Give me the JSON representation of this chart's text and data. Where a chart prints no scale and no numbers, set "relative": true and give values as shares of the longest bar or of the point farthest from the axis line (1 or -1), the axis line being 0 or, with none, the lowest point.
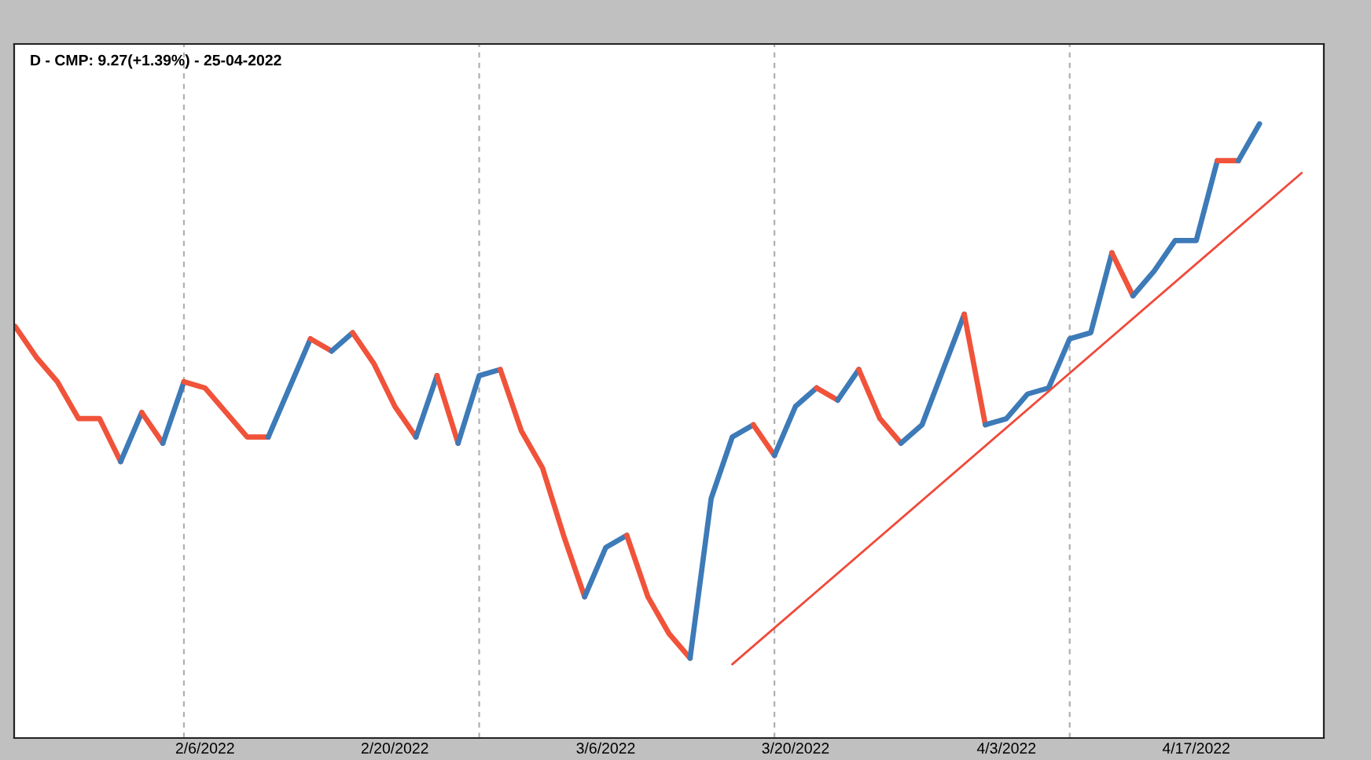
{
  "chart_data": {
    "type": "line",
    "relative": true,
    "grid": "x",
    "title": "D - CMP: 9.27(+1.39%) - 25-04-2022",
    "categories": [
      null,
      null,
      null,
      null,
      null,
      null,
      null,
      null,
      null,
      "2/6/2022",
      null,
      null,
      null,
      null,
      null,
      null,
      null,
      null,
      "2/20/2022",
      null,
      null,
      null,
      null,
      null,
      null,
      null,
      null,
      null,
      "3/6/2022",
      null,
      null,
      null,
      null,
      null,
      null,
      null,
      null,
      "3/20/2022",
      null,
      null,
      null,
      null,
      null,
      null,
      null,
      null,
      null,
      "4/3/2022",
      null,
      null,
      null,
      null,
      null,
      null,
      null,
      null,
      "4/17/2022",
      null,
      null,
      null,
      null,
      null,
      null
    ],
    "series": [
      {
        "color": "#f0533a",
        "values": [
          0.67,
          0.62,
          0.58,
          0.52,
          0.52,
          0.45,
          null,
          null,
          null,
          null,
          null,
          null,
          null,
          null,
          null,
          null,
          null,
          null,
          null,
          null,
          null,
          null,
          null,
          null,
          null,
          null,
          null,
          null,
          null,
          null,
          null,
          null,
          null,
          null,
          null,
          null,
          null,
          null,
          null,
          null,
          null,
          null,
          null,
          null,
          null,
          null,
          null,
          null,
          null,
          null,
          null,
          null,
          null,
          null,
          null,
          null,
          null,
          null,
          null,
          null,
          null,
          null,
          null
        ]
      },
      {
        "color": "#3d7ab8",
        "values": [
          null,
          null,
          null,
          null,
          null,
          0.45,
          0.53,
          null,
          null,
          null,
          null,
          null,
          null,
          null,
          null,
          null,
          null,
          null,
          null,
          null,
          null,
          null,
          null,
          null,
          null,
          null,
          null,
          null,
          null,
          null,
          null,
          null,
          null,
          null,
          null,
          null,
          null,
          null,
          null,
          null,
          null,
          null,
          null,
          null,
          null,
          null,
          null,
          null,
          null,
          null,
          null,
          null,
          null,
          null,
          null,
          null,
          null,
          null,
          null,
          null,
          null,
          null,
          null
        ]
      },
      {
        "color": "#f0533a",
        "values": [
          null,
          null,
          null,
          null,
          null,
          null,
          0.53,
          0.48,
          null,
          null,
          null,
          null,
          null,
          null,
          null,
          null,
          null,
          null,
          null,
          null,
          null,
          null,
          null,
          null,
          null,
          null,
          null,
          null,
          null,
          null,
          null,
          null,
          null,
          null,
          null,
          null,
          null,
          null,
          null,
          null,
          null,
          null,
          null,
          null,
          null,
          null,
          null,
          null,
          null,
          null,
          null,
          null,
          null,
          null,
          null,
          null,
          null,
          null,
          null,
          null,
          null,
          null,
          null
        ]
      },
      {
        "color": "#3d7ab8",
        "values": [
          null,
          null,
          null,
          null,
          null,
          null,
          null,
          0.48,
          0.58,
          null,
          null,
          null,
          null,
          null,
          null,
          null,
          null,
          null,
          null,
          null,
          null,
          null,
          null,
          null,
          null,
          null,
          null,
          null,
          null,
          null,
          null,
          null,
          null,
          null,
          null,
          null,
          null,
          null,
          null,
          null,
          null,
          null,
          null,
          null,
          null,
          null,
          null,
          null,
          null,
          null,
          null,
          null,
          null,
          null,
          null,
          null,
          null,
          null,
          null,
          null,
          null,
          null,
          null
        ]
      },
      {
        "color": "#f0533a",
        "values": [
          null,
          null,
          null,
          null,
          null,
          null,
          null,
          null,
          0.58,
          0.57,
          0.53,
          0.49,
          0.49,
          null,
          null,
          null,
          null,
          null,
          null,
          null,
          null,
          null,
          null,
          null,
          null,
          null,
          null,
          null,
          null,
          null,
          null,
          null,
          null,
          null,
          null,
          null,
          null,
          null,
          null,
          null,
          null,
          null,
          null,
          null,
          null,
          null,
          null,
          null,
          null,
          null,
          null,
          null,
          null,
          null,
          null,
          null,
          null,
          null,
          null,
          null,
          null,
          null,
          null
        ]
      },
      {
        "color": "#3d7ab8",
        "values": [
          null,
          null,
          null,
          null,
          null,
          null,
          null,
          null,
          null,
          null,
          null,
          null,
          0.49,
          0.57,
          0.65,
          null,
          null,
          null,
          null,
          null,
          null,
          null,
          null,
          null,
          null,
          null,
          null,
          null,
          null,
          null,
          null,
          null,
          null,
          null,
          null,
          null,
          null,
          null,
          null,
          null,
          null,
          null,
          null,
          null,
          null,
          null,
          null,
          null,
          null,
          null,
          null,
          null,
          null,
          null,
          null,
          null,
          null,
          null,
          null,
          null,
          null,
          null,
          null
        ]
      },
      {
        "color": "#f0533a",
        "values": [
          null,
          null,
          null,
          null,
          null,
          null,
          null,
          null,
          null,
          null,
          null,
          null,
          null,
          null,
          0.65,
          0.63,
          null,
          null,
          null,
          null,
          null,
          null,
          null,
          null,
          null,
          null,
          null,
          null,
          null,
          null,
          null,
          null,
          null,
          null,
          null,
          null,
          null,
          null,
          null,
          null,
          null,
          null,
          null,
          null,
          null,
          null,
          null,
          null,
          null,
          null,
          null,
          null,
          null,
          null,
          null,
          null,
          null,
          null,
          null,
          null,
          null,
          null,
          null
        ]
      },
      {
        "color": "#3d7ab8",
        "values": [
          null,
          null,
          null,
          null,
          null,
          null,
          null,
          null,
          null,
          null,
          null,
          null,
          null,
          null,
          null,
          0.63,
          0.66,
          null,
          null,
          null,
          null,
          null,
          null,
          null,
          null,
          null,
          null,
          null,
          null,
          null,
          null,
          null,
          null,
          null,
          null,
          null,
          null,
          null,
          null,
          null,
          null,
          null,
          null,
          null,
          null,
          null,
          null,
          null,
          null,
          null,
          null,
          null,
          null,
          null,
          null,
          null,
          null,
          null,
          null,
          null,
          null,
          null,
          null
        ]
      },
      {
        "color": "#f0533a",
        "values": [
          null,
          null,
          null,
          null,
          null,
          null,
          null,
          null,
          null,
          null,
          null,
          null,
          null,
          null,
          null,
          null,
          0.66,
          0.61,
          0.54,
          0.49,
          null,
          null,
          null,
          null,
          null,
          null,
          null,
          null,
          null,
          null,
          null,
          null,
          null,
          null,
          null,
          null,
          null,
          null,
          null,
          null,
          null,
          null,
          null,
          null,
          null,
          null,
          null,
          null,
          null,
          null,
          null,
          null,
          null,
          null,
          null,
          null,
          null,
          null,
          null,
          null,
          null,
          null,
          null
        ]
      },
      {
        "color": "#3d7ab8",
        "values": [
          null,
          null,
          null,
          null,
          null,
          null,
          null,
          null,
          null,
          null,
          null,
          null,
          null,
          null,
          null,
          null,
          null,
          null,
          null,
          0.49,
          0.59,
          null,
          null,
          null,
          null,
          null,
          null,
          null,
          null,
          null,
          null,
          null,
          null,
          null,
          null,
          null,
          null,
          null,
          null,
          null,
          null,
          null,
          null,
          null,
          null,
          null,
          null,
          null,
          null,
          null,
          null,
          null,
          null,
          null,
          null,
          null,
          null,
          null,
          null,
          null,
          null,
          null,
          null
        ]
      },
      {
        "color": "#f0533a",
        "values": [
          null,
          null,
          null,
          null,
          null,
          null,
          null,
          null,
          null,
          null,
          null,
          null,
          null,
          null,
          null,
          null,
          null,
          null,
          null,
          null,
          0.59,
          0.48,
          null,
          null,
          null,
          null,
          null,
          null,
          null,
          null,
          null,
          null,
          null,
          null,
          null,
          null,
          null,
          null,
          null,
          null,
          null,
          null,
          null,
          null,
          null,
          null,
          null,
          null,
          null,
          null,
          null,
          null,
          null,
          null,
          null,
          null,
          null,
          null,
          null,
          null,
          null,
          null,
          null
        ]
      },
      {
        "color": "#3d7ab8",
        "values": [
          null,
          null,
          null,
          null,
          null,
          null,
          null,
          null,
          null,
          null,
          null,
          null,
          null,
          null,
          null,
          null,
          null,
          null,
          null,
          null,
          null,
          0.48,
          0.59,
          0.6,
          null,
          null,
          null,
          null,
          null,
          null,
          null,
          null,
          null,
          null,
          null,
          null,
          null,
          null,
          null,
          null,
          null,
          null,
          null,
          null,
          null,
          null,
          null,
          null,
          null,
          null,
          null,
          null,
          null,
          null,
          null,
          null,
          null,
          null,
          null,
          null,
          null,
          null,
          null
        ]
      },
      {
        "color": "#f0533a",
        "values": [
          null,
          null,
          null,
          null,
          null,
          null,
          null,
          null,
          null,
          null,
          null,
          null,
          null,
          null,
          null,
          null,
          null,
          null,
          null,
          null,
          null,
          null,
          null,
          0.6,
          0.5,
          0.44,
          0.33,
          0.23,
          null,
          null,
          null,
          null,
          null,
          null,
          null,
          null,
          null,
          null,
          null,
          null,
          null,
          null,
          null,
          null,
          null,
          null,
          null,
          null,
          null,
          null,
          null,
          null,
          null,
          null,
          null,
          null,
          null,
          null,
          null,
          null,
          null,
          null,
          null
        ]
      },
      {
        "color": "#3d7ab8",
        "values": [
          null,
          null,
          null,
          null,
          null,
          null,
          null,
          null,
          null,
          null,
          null,
          null,
          null,
          null,
          null,
          null,
          null,
          null,
          null,
          null,
          null,
          null,
          null,
          null,
          null,
          null,
          null,
          0.23,
          0.31,
          0.33,
          null,
          null,
          null,
          null,
          null,
          null,
          null,
          null,
          null,
          null,
          null,
          null,
          null,
          null,
          null,
          null,
          null,
          null,
          null,
          null,
          null,
          null,
          null,
          null,
          null,
          null,
          null,
          null,
          null,
          null,
          null,
          null,
          null
        ]
      },
      {
        "color": "#f0533a",
        "values": [
          null,
          null,
          null,
          null,
          null,
          null,
          null,
          null,
          null,
          null,
          null,
          null,
          null,
          null,
          null,
          null,
          null,
          null,
          null,
          null,
          null,
          null,
          null,
          null,
          null,
          null,
          null,
          null,
          null,
          0.33,
          0.23,
          0.17,
          0.13,
          null,
          null,
          null,
          null,
          null,
          null,
          null,
          null,
          null,
          null,
          null,
          null,
          null,
          null,
          null,
          null,
          null,
          null,
          null,
          null,
          null,
          null,
          null,
          null,
          null,
          null,
          null,
          null,
          null,
          null
        ]
      },
      {
        "color": "#3d7ab8",
        "values": [
          null,
          null,
          null,
          null,
          null,
          null,
          null,
          null,
          null,
          null,
          null,
          null,
          null,
          null,
          null,
          null,
          null,
          null,
          null,
          null,
          null,
          null,
          null,
          null,
          null,
          null,
          null,
          null,
          null,
          null,
          null,
          null,
          0.13,
          0.39,
          0.49,
          0.51,
          null,
          null,
          null,
          null,
          null,
          null,
          null,
          null,
          null,
          null,
          null,
          null,
          null,
          null,
          null,
          null,
          null,
          null,
          null,
          null,
          null,
          null,
          null,
          null,
          null,
          null,
          null
        ]
      },
      {
        "color": "#f0533a",
        "values": [
          null,
          null,
          null,
          null,
          null,
          null,
          null,
          null,
          null,
          null,
          null,
          null,
          null,
          null,
          null,
          null,
          null,
          null,
          null,
          null,
          null,
          null,
          null,
          null,
          null,
          null,
          null,
          null,
          null,
          null,
          null,
          null,
          null,
          null,
          null,
          0.51,
          0.46,
          null,
          null,
          null,
          null,
          null,
          null,
          null,
          null,
          null,
          null,
          null,
          null,
          null,
          null,
          null,
          null,
          null,
          null,
          null,
          null,
          null,
          null,
          null,
          null,
          null,
          null
        ]
      },
      {
        "color": "#3d7ab8",
        "values": [
          null,
          null,
          null,
          null,
          null,
          null,
          null,
          null,
          null,
          null,
          null,
          null,
          null,
          null,
          null,
          null,
          null,
          null,
          null,
          null,
          null,
          null,
          null,
          null,
          null,
          null,
          null,
          null,
          null,
          null,
          null,
          null,
          null,
          null,
          null,
          null,
          0.46,
          0.54,
          0.57,
          null,
          null,
          null,
          null,
          null,
          null,
          null,
          null,
          null,
          null,
          null,
          null,
          null,
          null,
          null,
          null,
          null,
          null,
          null,
          null,
          null,
          null,
          null,
          null
        ]
      },
      {
        "color": "#f0533a",
        "values": [
          null,
          null,
          null,
          null,
          null,
          null,
          null,
          null,
          null,
          null,
          null,
          null,
          null,
          null,
          null,
          null,
          null,
          null,
          null,
          null,
          null,
          null,
          null,
          null,
          null,
          null,
          null,
          null,
          null,
          null,
          null,
          null,
          null,
          null,
          null,
          null,
          null,
          null,
          0.57,
          0.55,
          null,
          null,
          null,
          null,
          null,
          null,
          null,
          null,
          null,
          null,
          null,
          null,
          null,
          null,
          null,
          null,
          null,
          null,
          null,
          null,
          null,
          null,
          null
        ]
      },
      {
        "color": "#3d7ab8",
        "values": [
          null,
          null,
          null,
          null,
          null,
          null,
          null,
          null,
          null,
          null,
          null,
          null,
          null,
          null,
          null,
          null,
          null,
          null,
          null,
          null,
          null,
          null,
          null,
          null,
          null,
          null,
          null,
          null,
          null,
          null,
          null,
          null,
          null,
          null,
          null,
          null,
          null,
          null,
          null,
          0.55,
          0.6,
          null,
          null,
          null,
          null,
          null,
          null,
          null,
          null,
          null,
          null,
          null,
          null,
          null,
          null,
          null,
          null,
          null,
          null,
          null,
          null,
          null,
          null
        ]
      },
      {
        "color": "#f0533a",
        "values": [
          null,
          null,
          null,
          null,
          null,
          null,
          null,
          null,
          null,
          null,
          null,
          null,
          null,
          null,
          null,
          null,
          null,
          null,
          null,
          null,
          null,
          null,
          null,
          null,
          null,
          null,
          null,
          null,
          null,
          null,
          null,
          null,
          null,
          null,
          null,
          null,
          null,
          null,
          null,
          null,
          0.6,
          0.52,
          0.48,
          null,
          null,
          null,
          null,
          null,
          null,
          null,
          null,
          null,
          null,
          null,
          null,
          null,
          null,
          null,
          null,
          null,
          null,
          null,
          null
        ]
      },
      {
        "color": "#3d7ab8",
        "values": [
          null,
          null,
          null,
          null,
          null,
          null,
          null,
          null,
          null,
          null,
          null,
          null,
          null,
          null,
          null,
          null,
          null,
          null,
          null,
          null,
          null,
          null,
          null,
          null,
          null,
          null,
          null,
          null,
          null,
          null,
          null,
          null,
          null,
          null,
          null,
          null,
          null,
          null,
          null,
          null,
          null,
          null,
          0.48,
          0.51,
          0.6,
          0.69,
          null,
          null,
          null,
          null,
          null,
          null,
          null,
          null,
          null,
          null,
          null,
          null,
          null,
          null,
          null,
          null,
          null
        ]
      },
      {
        "color": "#f0533a",
        "values": [
          null,
          null,
          null,
          null,
          null,
          null,
          null,
          null,
          null,
          null,
          null,
          null,
          null,
          null,
          null,
          null,
          null,
          null,
          null,
          null,
          null,
          null,
          null,
          null,
          null,
          null,
          null,
          null,
          null,
          null,
          null,
          null,
          null,
          null,
          null,
          null,
          null,
          null,
          null,
          null,
          null,
          null,
          null,
          null,
          null,
          0.69,
          0.51,
          null,
          null,
          null,
          null,
          null,
          null,
          null,
          null,
          null,
          null,
          null,
          null,
          null,
          null,
          null,
          null
        ]
      },
      {
        "color": "#3d7ab8",
        "values": [
          null,
          null,
          null,
          null,
          null,
          null,
          null,
          null,
          null,
          null,
          null,
          null,
          null,
          null,
          null,
          null,
          null,
          null,
          null,
          null,
          null,
          null,
          null,
          null,
          null,
          null,
          null,
          null,
          null,
          null,
          null,
          null,
          null,
          null,
          null,
          null,
          null,
          null,
          null,
          null,
          null,
          null,
          null,
          null,
          null,
          null,
          0.51,
          0.52,
          0.56,
          0.57,
          0.65,
          0.66,
          0.79,
          null,
          null,
          null,
          null,
          null,
          null,
          null,
          null,
          null,
          null
        ]
      },
      {
        "color": "#f0533a",
        "values": [
          null,
          null,
          null,
          null,
          null,
          null,
          null,
          null,
          null,
          null,
          null,
          null,
          null,
          null,
          null,
          null,
          null,
          null,
          null,
          null,
          null,
          null,
          null,
          null,
          null,
          null,
          null,
          null,
          null,
          null,
          null,
          null,
          null,
          null,
          null,
          null,
          null,
          null,
          null,
          null,
          null,
          null,
          null,
          null,
          null,
          null,
          null,
          null,
          null,
          null,
          null,
          null,
          0.79,
          0.72,
          null,
          null,
          null,
          null,
          null,
          null,
          null,
          null,
          null
        ]
      },
      {
        "color": "#3d7ab8",
        "values": [
          null,
          null,
          null,
          null,
          null,
          null,
          null,
          null,
          null,
          null,
          null,
          null,
          null,
          null,
          null,
          null,
          null,
          null,
          null,
          null,
          null,
          null,
          null,
          null,
          null,
          null,
          null,
          null,
          null,
          null,
          null,
          null,
          null,
          null,
          null,
          null,
          null,
          null,
          null,
          null,
          null,
          null,
          null,
          null,
          null,
          null,
          null,
          null,
          null,
          null,
          null,
          null,
          null,
          0.72,
          0.76,
          0.81,
          0.81,
          0.94,
          null,
          null,
          null,
          null,
          null
        ]
      },
      {
        "color": "#f0533a",
        "values": [
          null,
          null,
          null,
          null,
          null,
          null,
          null,
          null,
          null,
          null,
          null,
          null,
          null,
          null,
          null,
          null,
          null,
          null,
          null,
          null,
          null,
          null,
          null,
          null,
          null,
          null,
          null,
          null,
          null,
          null,
          null,
          null,
          null,
          null,
          null,
          null,
          null,
          null,
          null,
          null,
          null,
          null,
          null,
          null,
          null,
          null,
          null,
          null,
          null,
          null,
          null,
          null,
          null,
          null,
          null,
          null,
          null,
          0.94,
          0.94,
          null,
          null,
          null,
          null
        ]
      },
      {
        "color": "#3d7ab8",
        "values": [
          null,
          null,
          null,
          null,
          null,
          null,
          null,
          null,
          null,
          null,
          null,
          null,
          null,
          null,
          null,
          null,
          null,
          null,
          null,
          null,
          null,
          null,
          null,
          null,
          null,
          null,
          null,
          null,
          null,
          null,
          null,
          null,
          null,
          null,
          null,
          null,
          null,
          null,
          null,
          null,
          null,
          null,
          null,
          null,
          null,
          null,
          null,
          null,
          null,
          null,
          null,
          null,
          null,
          null,
          null,
          null,
          null,
          null,
          0.94,
          1,
          null,
          null,
          null
        ]
      },
      {
        "type": "line",
        "color": "#f04a3a",
        "values": [
          null,
          null,
          null,
          null,
          null,
          null,
          null,
          null,
          null,
          null,
          null,
          null,
          null,
          null,
          null,
          null,
          null,
          null,
          null,
          null,
          null,
          null,
          null,
          null,
          null,
          null,
          null,
          null,
          null,
          null,
          null,
          null,
          null,
          null,
          0.12,
          null,
          null,
          null,
          null,
          null,
          null,
          null,
          null,
          null,
          null,
          null,
          null,
          null,
          null,
          null,
          null,
          null,
          null,
          null,
          null,
          null,
          null,
          null,
          null,
          null,
          null,
          0.92,
          null
        ]
      }
    ]
  }
}
